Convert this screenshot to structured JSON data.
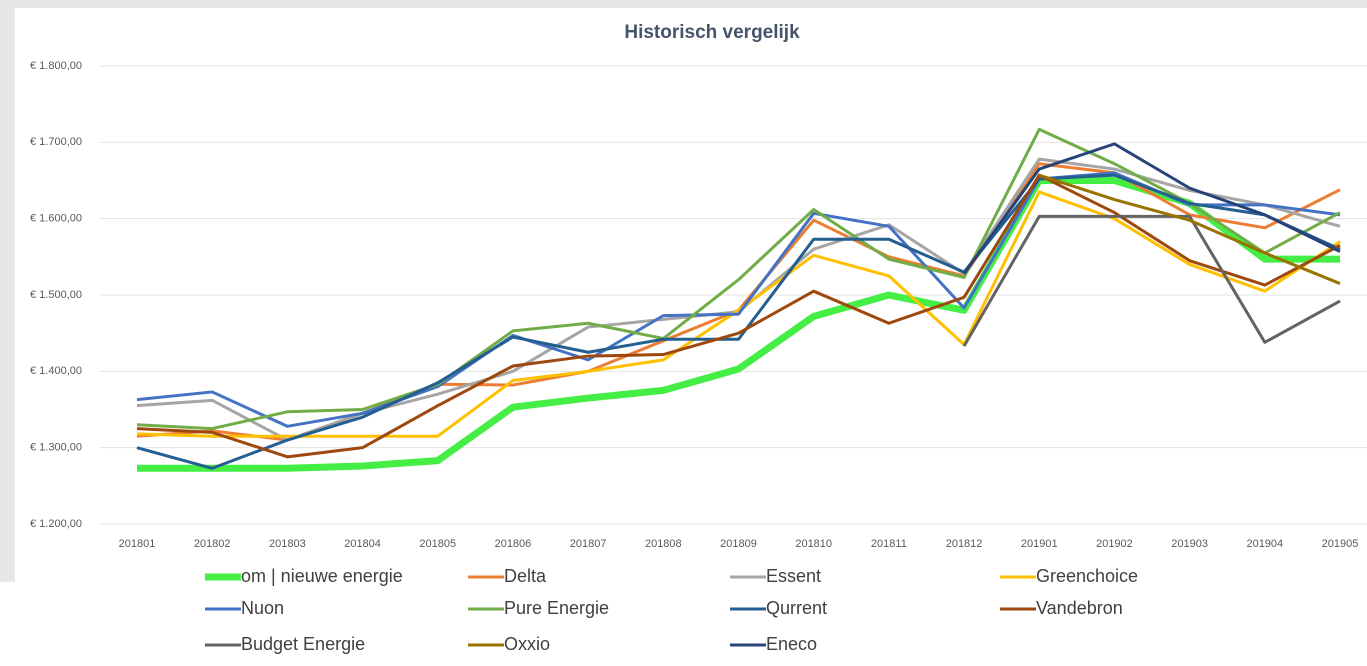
{
  "chart_data": {
    "type": "line",
    "title": "Historisch vergelijk",
    "categories": [
      "201801",
      "201802",
      "201803",
      "201804",
      "201805",
      "201806",
      "201807",
      "201808",
      "201809",
      "201810",
      "201811",
      "201812",
      "201901",
      "201902",
      "201903",
      "201904",
      "201905"
    ],
    "ylim": [
      1200,
      1800
    ],
    "yticks": [
      {
        "value": 1200,
        "label": "€ 1.200,00"
      },
      {
        "value": 1300,
        "label": "€ 1.300,00"
      },
      {
        "value": 1400,
        "label": "€ 1.400,00"
      },
      {
        "value": 1500,
        "label": "€ 1.500,00"
      },
      {
        "value": 1600,
        "label": "€ 1.600,00"
      },
      {
        "value": 1700,
        "label": "€ 1.700,00"
      },
      {
        "value": 1800,
        "label": "€ 1.800,00"
      }
    ],
    "grid": true,
    "series": [
      {
        "name": "om | nieuwe energie",
        "color": "#44ee44",
        "values": [
          1273,
          1273,
          1273,
          1276,
          1283,
          1353,
          1365,
          1375,
          1403,
          1472,
          1500,
          1480,
          1650,
          1650,
          1620,
          1547,
          1547
        ]
      },
      {
        "name": "Delta",
        "color": "#ed7d31",
        "values": [
          1315,
          1322,
          1310,
          1345,
          1383,
          1382,
          1400,
          1440,
          1480,
          1598,
          1550,
          1525,
          1672,
          1660,
          1605,
          1588,
          1638
        ]
      },
      {
        "name": "Essent",
        "color": "#a5a5a5",
        "values": [
          1355,
          1362,
          1310,
          1345,
          1370,
          1400,
          1458,
          1468,
          1478,
          1560,
          1592,
          1528,
          1678,
          1665,
          1637,
          1618,
          1590
        ]
      },
      {
        "name": "Greenchoice",
        "color": "#ffc000",
        "values": [
          1318,
          1315,
          1315,
          1315,
          1315,
          1388,
          1400,
          1415,
          1480,
          1552,
          1525,
          1435,
          1635,
          1600,
          1540,
          1505,
          1570
        ]
      },
      {
        "name": "Nuon",
        "color": "#4472c4",
        "values": [
          1363,
          1373,
          1328,
          1345,
          1380,
          1447,
          1415,
          1473,
          1475,
          1607,
          1590,
          1483,
          1652,
          1660,
          1618,
          1618,
          1605
        ]
      },
      {
        "name": "Pure Energie",
        "color": "#70ad47",
        "values": [
          1330,
          1325,
          1347,
          1350,
          1383,
          1453,
          1463,
          1443,
          1520,
          1612,
          1547,
          1523,
          1717,
          1672,
          1620,
          1555,
          1608
        ]
      },
      {
        "name": "Qurrent",
        "color": "#255e91",
        "values": [
          1300,
          1273,
          1310,
          1340,
          1385,
          1445,
          1425,
          1442,
          1442,
          1573,
          1573,
          1530,
          1652,
          1657,
          1620,
          1605,
          1560
        ]
      },
      {
        "name": "Vandebron",
        "color": "#9e480e",
        "values": [
          1325,
          1320,
          1288,
          1300,
          1355,
          1407,
          1420,
          1422,
          1450,
          1505,
          1463,
          1497,
          1657,
          1608,
          1545,
          1513,
          1565
        ]
      },
      {
        "name": "Budget Energie",
        "color": "#636363",
        "values": [
          null,
          null,
          null,
          null,
          null,
          null,
          null,
          null,
          null,
          null,
          null,
          1433,
          1603,
          1603,
          1603,
          1438,
          1492
        ]
      },
      {
        "name": "Oxxio",
        "color": "#997300",
        "values": [
          null,
          null,
          null,
          null,
          null,
          null,
          null,
          null,
          null,
          null,
          null,
          null,
          1657,
          1625,
          1598,
          1555,
          1515
        ]
      },
      {
        "name": "Eneco",
        "color": "#264478",
        "values": [
          null,
          null,
          null,
          null,
          null,
          null,
          null,
          null,
          null,
          null,
          null,
          1528,
          1665,
          1698,
          1640,
          1605,
          1557
        ]
      }
    ]
  }
}
